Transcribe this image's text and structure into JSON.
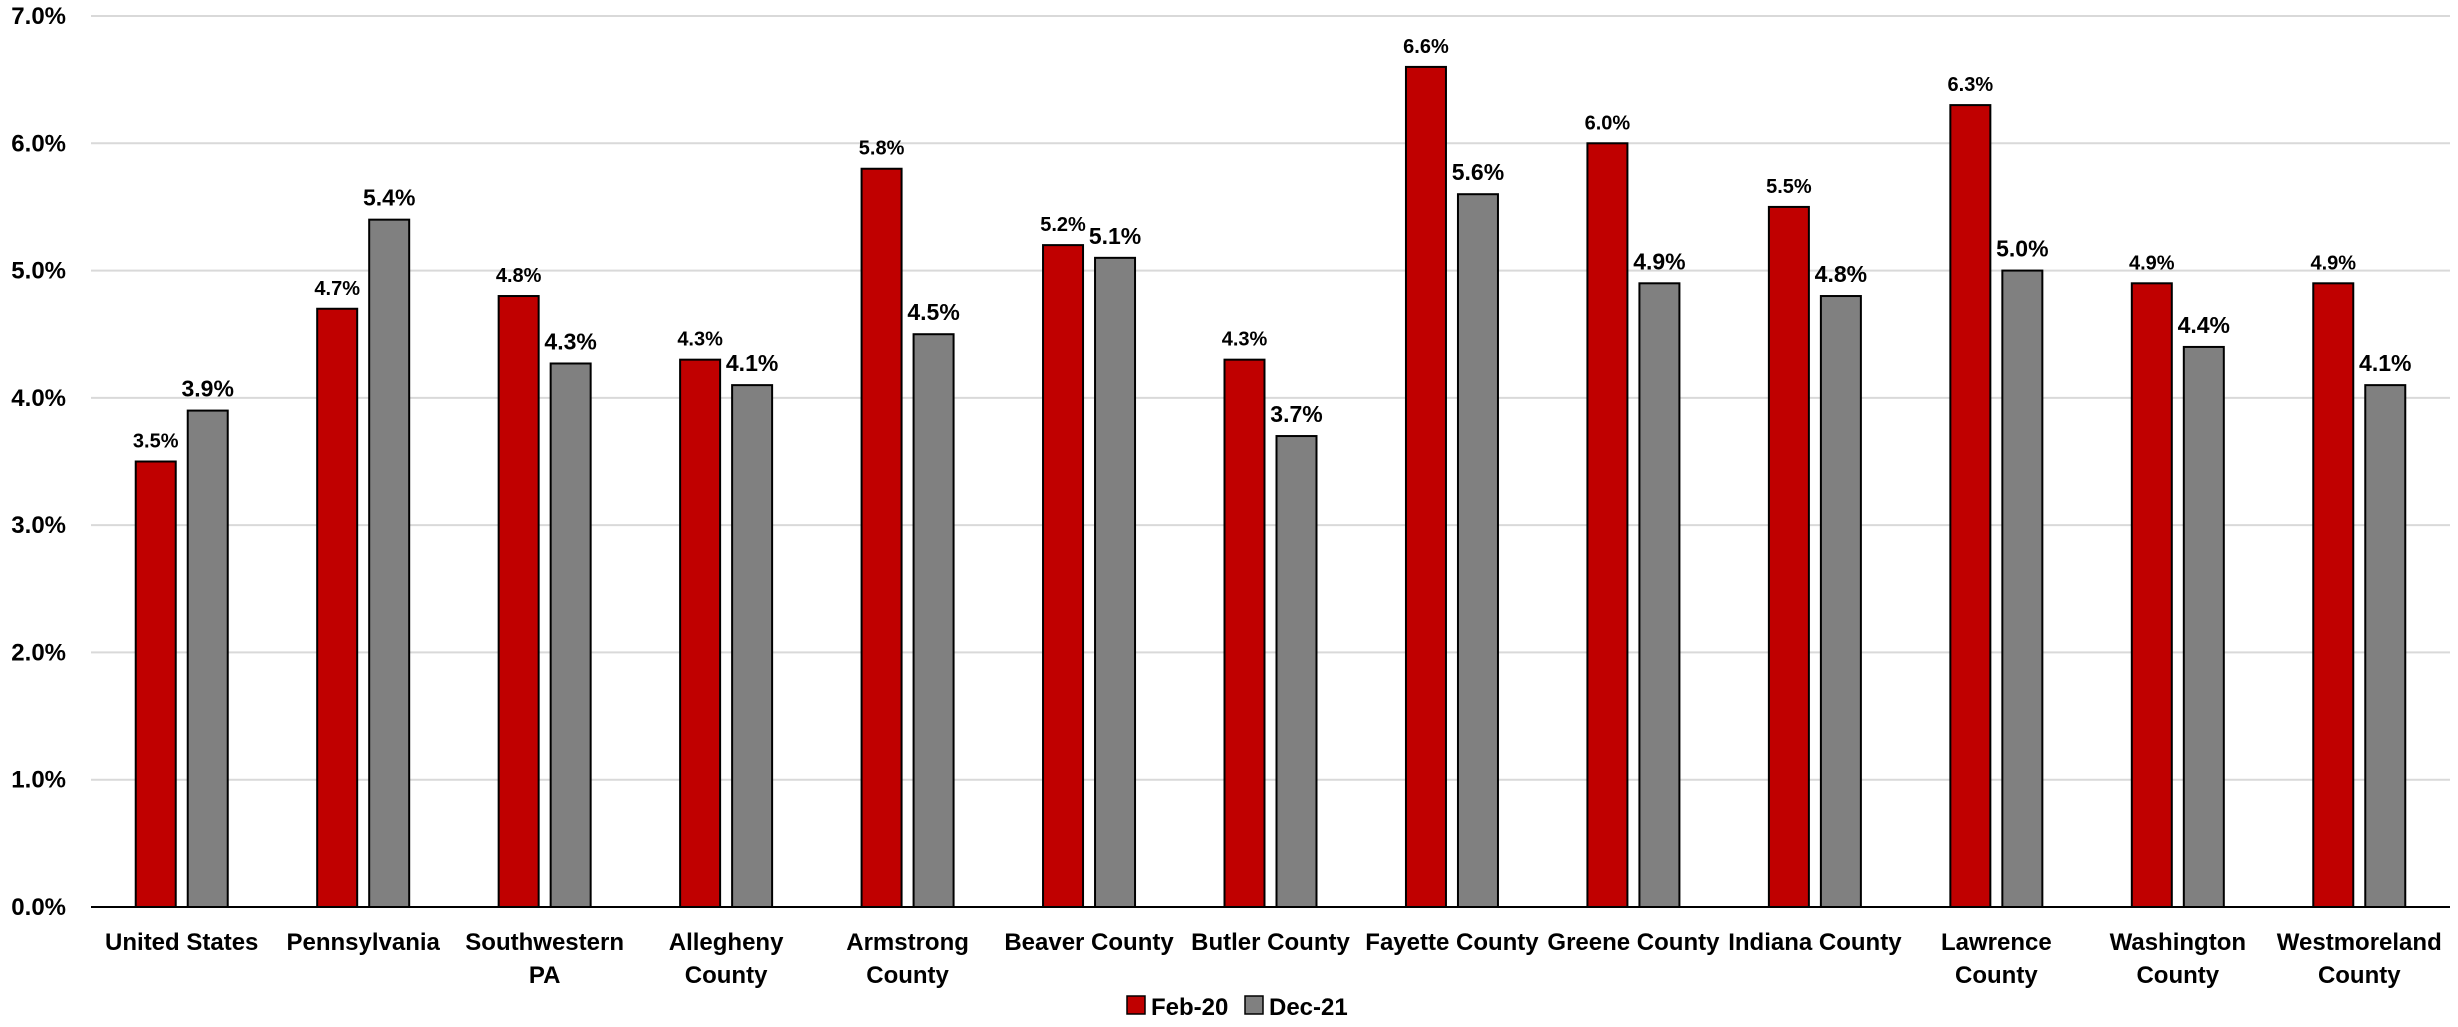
{
  "chart_data": {
    "type": "bar",
    "title": "",
    "xlabel": "",
    "ylabel": "",
    "ylim": [
      0,
      7
    ],
    "yticks": [
      "0.0%",
      "1.0%",
      "2.0%",
      "3.0%",
      "4.0%",
      "5.0%",
      "6.0%",
      "7.0%"
    ],
    "y_tick_values": [
      0,
      1,
      2,
      3,
      4,
      5,
      6,
      7
    ],
    "grid": true,
    "legend_position": "bottom",
    "categories": [
      [
        "United States"
      ],
      [
        "Pennsylvania"
      ],
      [
        "Southwestern",
        "PA"
      ],
      [
        "Allegheny",
        "County"
      ],
      [
        "Armstrong",
        "County"
      ],
      [
        "Beaver County"
      ],
      [
        "Butler County"
      ],
      [
        "Fayette County"
      ],
      [
        "Greene County"
      ],
      [
        "Indiana County"
      ],
      [
        "Lawrence",
        "County"
      ],
      [
        "Washington",
        "County"
      ],
      [
        "Westmoreland",
        "County"
      ]
    ],
    "series": [
      {
        "name": "Feb-20",
        "color": "#c00000",
        "values": [
          3.5,
          4.7,
          4.8,
          4.3,
          5.8,
          5.2,
          4.3,
          6.6,
          6.0,
          5.5,
          6.3,
          4.9,
          4.9
        ],
        "labels": [
          "3.5%",
          "4.7%",
          "4.8%",
          "4.3%",
          "5.8%",
          "5.2%",
          "4.3%",
          "6.6%",
          "6.0%",
          "5.5%",
          "6.3%",
          "4.9%",
          "4.9%"
        ]
      },
      {
        "name": "Dec-21",
        "color": "#808080",
        "values": [
          3.9,
          5.4,
          4.27,
          4.1,
          4.5,
          5.1,
          3.7,
          5.6,
          4.9,
          4.8,
          5.0,
          4.4,
          4.1
        ],
        "labels": [
          "3.9%",
          "5.4%",
          "4.3%",
          "4.1%",
          "4.5%",
          "5.1%",
          "3.7%",
          "5.6%",
          "4.9%",
          "4.8%",
          "5.0%",
          "4.4%",
          "4.1%"
        ]
      }
    ]
  }
}
